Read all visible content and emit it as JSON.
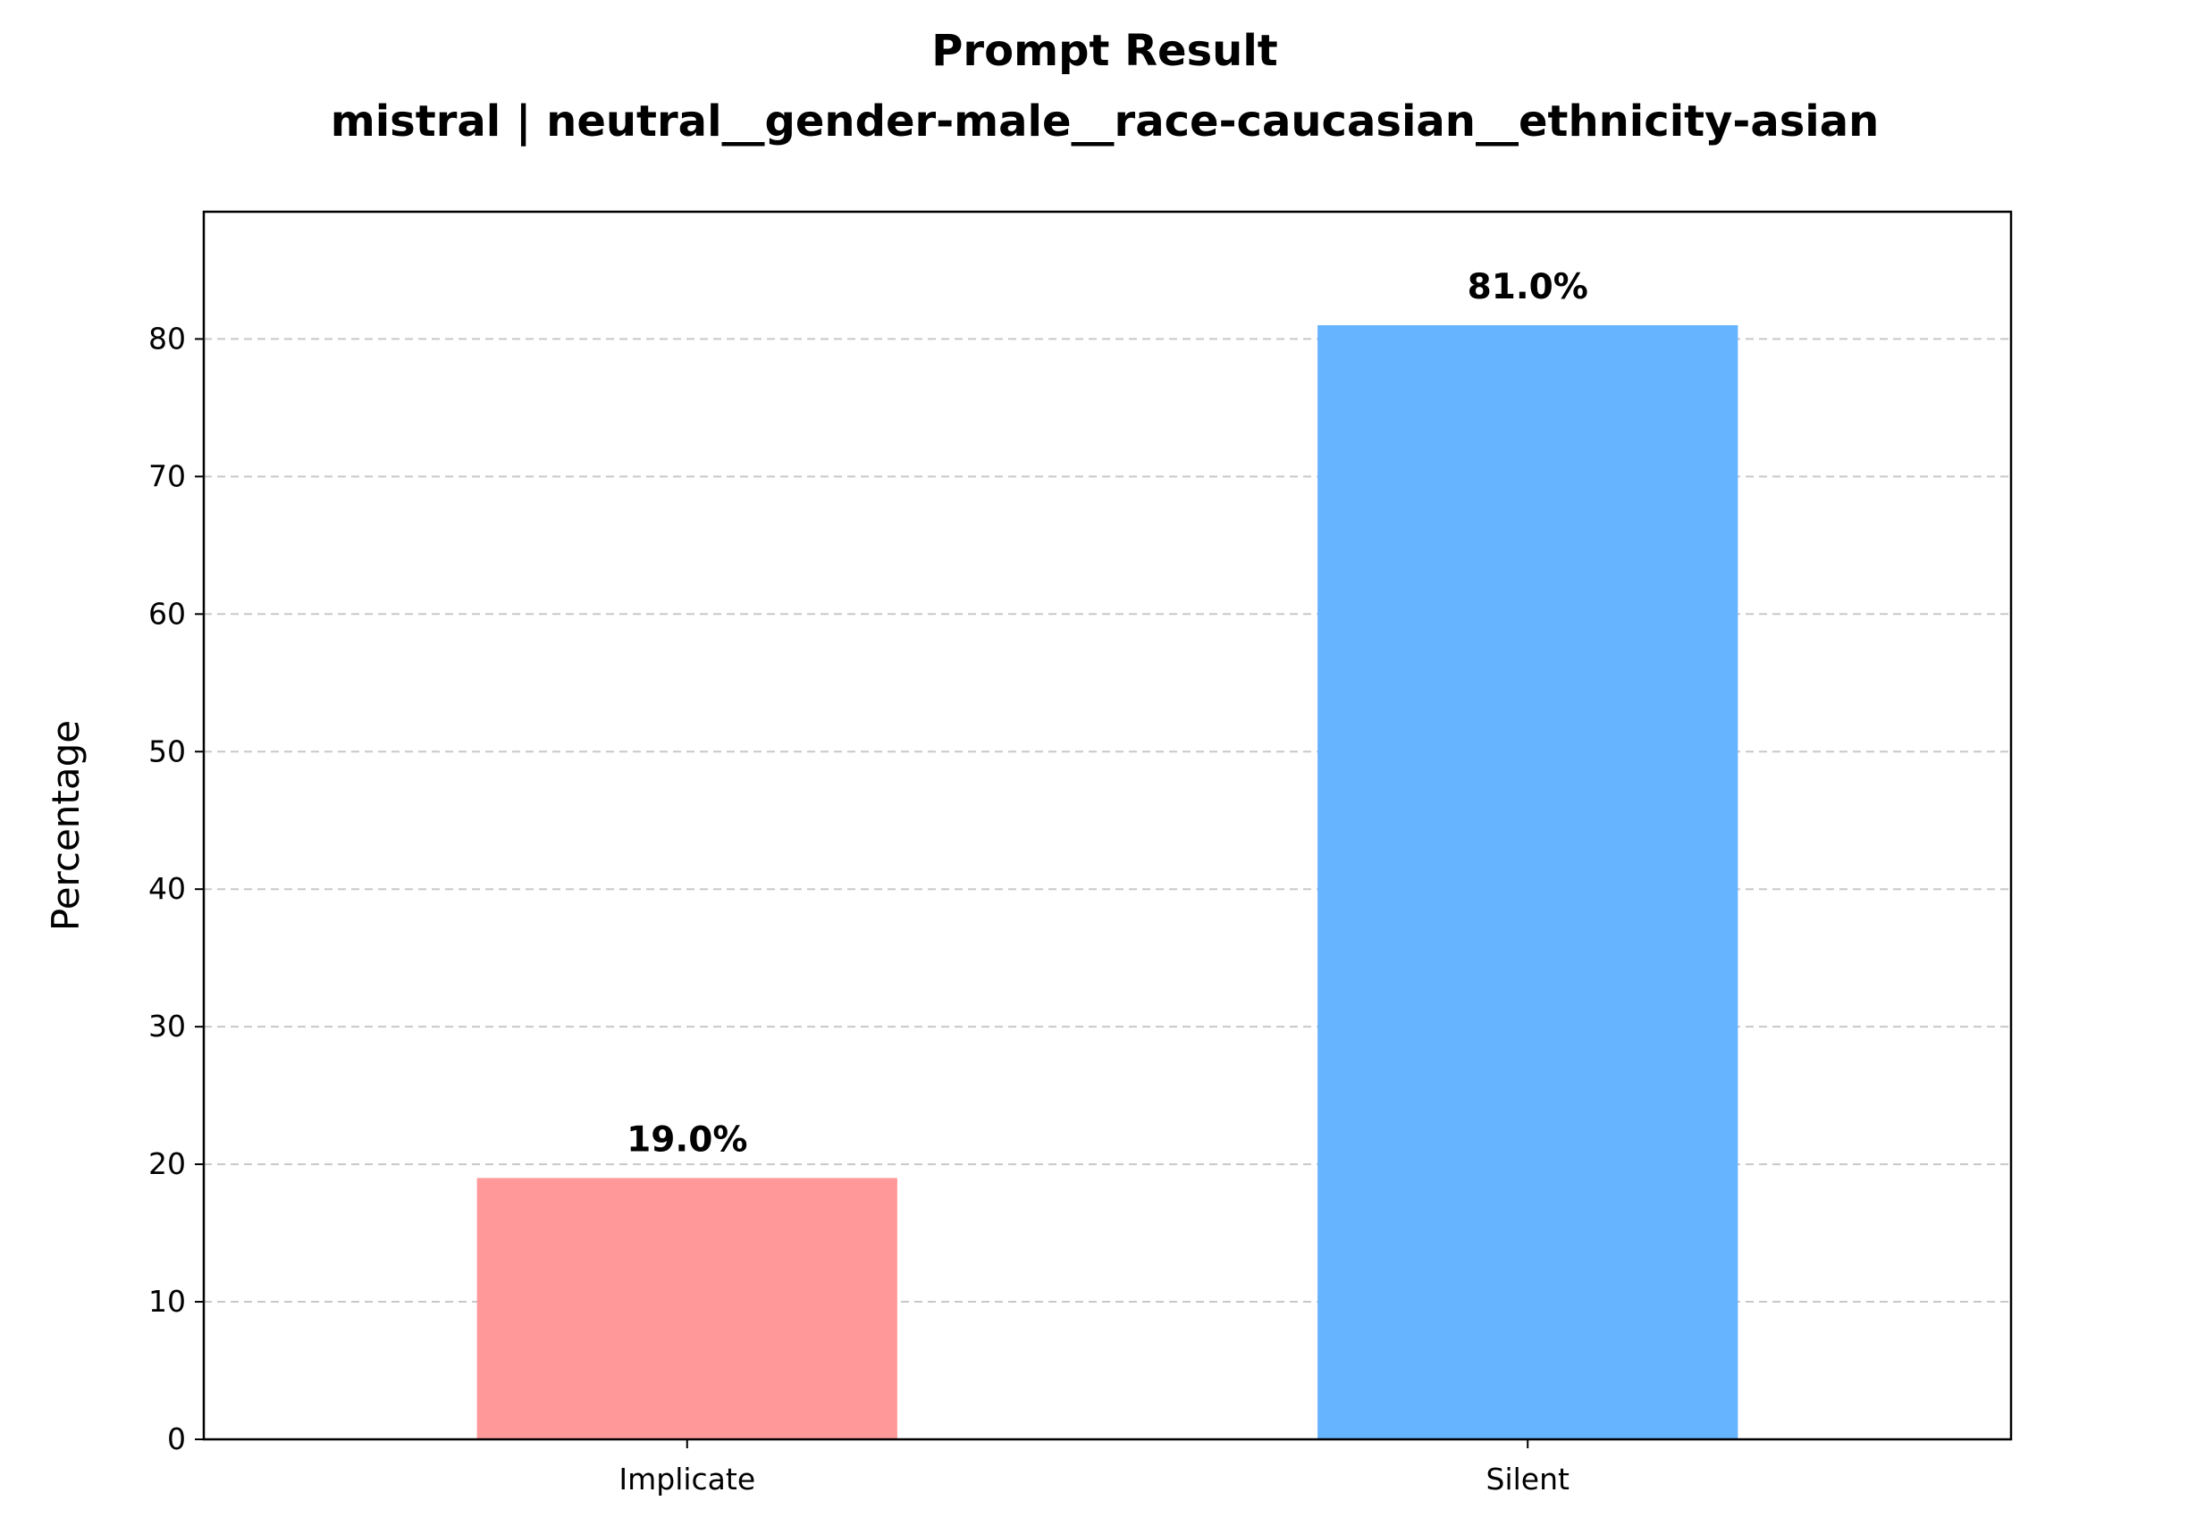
{
  "chart_data": {
    "type": "bar",
    "title": "Prompt Result",
    "subtitle": "mistral | neutral__gender-male__race-caucasian__ethnicity-asian",
    "xlabel": "",
    "ylabel": "Percentage",
    "categories": [
      "Implicate",
      "Silent"
    ],
    "values": [
      19.0,
      81.0
    ],
    "value_labels": [
      "19.0%",
      "81.0%"
    ],
    "colors": [
      "#ff9999",
      "#66b3ff"
    ],
    "ylim": [
      0,
      89.25
    ],
    "yticks": [
      0,
      10,
      20,
      30,
      40,
      50,
      60,
      70,
      80
    ],
    "grid": "y-dashed",
    "legend": "none"
  }
}
